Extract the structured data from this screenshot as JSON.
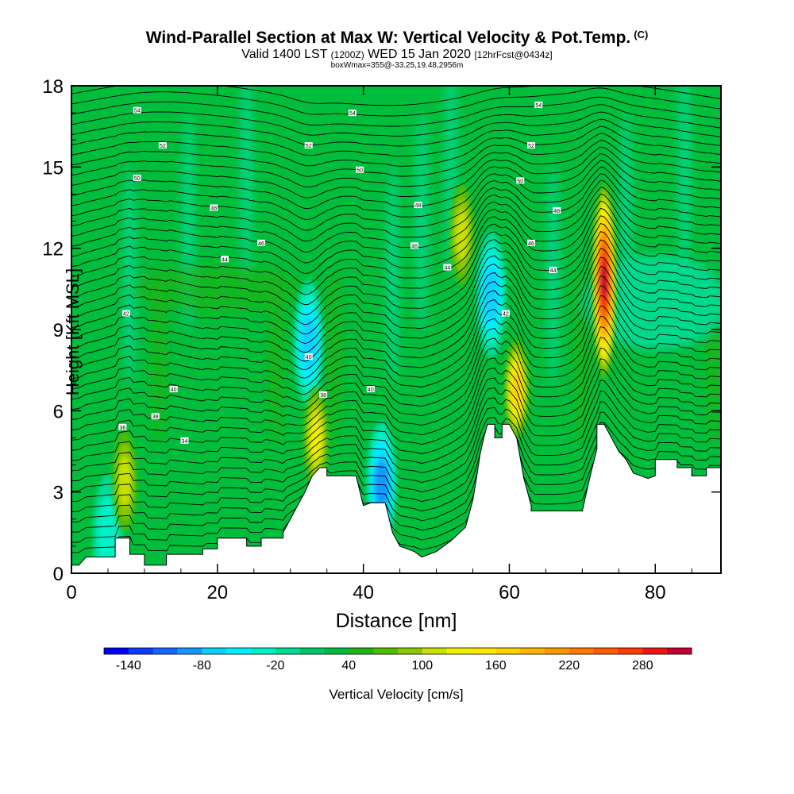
{
  "header": {
    "title": "Wind-Parallel Section at Max W: Vertical Velocity & Pot.Temp.",
    "copyright": "(C)",
    "valid_prefix": "Valid 1400 LST",
    "valid_z": "(1200Z)",
    "valid_date": "WED 15 Jan 2020",
    "valid_fcst": "[12hrFcst@0434z]",
    "box_info": "boxWmax=355@-33.25,19.48,2956m"
  },
  "chart_data": {
    "type": "heatmap",
    "title": "Wind-Parallel Section at Max W: Vertical Velocity & Pot.Temp.",
    "xlabel": "Distance [nm]",
    "ylabel": "Height [Kft MSL]",
    "xlim": [
      0,
      89
    ],
    "ylim": [
      0,
      18
    ],
    "xticks": [
      0,
      20,
      40,
      60,
      80
    ],
    "yticks": [
      0,
      3,
      6,
      9,
      12,
      15,
      18
    ],
    "colorbar": {
      "label": "Vertical Velocity [cm/s]",
      "tick_labels": [
        -140,
        -80,
        -20,
        40,
        100,
        160,
        220,
        280
      ],
      "min": -160,
      "max": 320,
      "step": 20,
      "colors": [
        "#0000ff",
        "#0a3cff",
        "#1464ff",
        "#1496ff",
        "#0ad2ff",
        "#00f0ff",
        "#00f0c8",
        "#00dc96",
        "#00c864",
        "#00be3c",
        "#1eb414",
        "#50be00",
        "#8cc800",
        "#c8e100",
        "#f0f000",
        "#fae600",
        "#ffd200",
        "#ffb400",
        "#ff9600",
        "#ff7800",
        "#ff5a00",
        "#ff3c00",
        "#f01414",
        "#c80032"
      ]
    },
    "terrain": [
      [
        0,
        0.3
      ],
      [
        1,
        0.3
      ],
      [
        2,
        0.6
      ],
      [
        6,
        0.6
      ],
      [
        6,
        1.3
      ],
      [
        8,
        1.3
      ],
      [
        8,
        0.7
      ],
      [
        10,
        0.7
      ],
      [
        10,
        0.3
      ],
      [
        13,
        0.3
      ],
      [
        13,
        0.7
      ],
      [
        18,
        0.7
      ],
      [
        18,
        0.9
      ],
      [
        20,
        0.9
      ],
      [
        20,
        1.3
      ],
      [
        24,
        1.3
      ],
      [
        24,
        1.0
      ],
      [
        26,
        1.0
      ],
      [
        26,
        1.3
      ],
      [
        29,
        1.3
      ],
      [
        29,
        1.5
      ],
      [
        30,
        2.0
      ],
      [
        31,
        2.5
      ],
      [
        32,
        3.0
      ],
      [
        33,
        3.6
      ],
      [
        34,
        3.9
      ],
      [
        35,
        3.9
      ],
      [
        35,
        3.6
      ],
      [
        39,
        3.6
      ],
      [
        40,
        2.5
      ],
      [
        41,
        2.6
      ],
      [
        43,
        2.6
      ],
      [
        44,
        1.5
      ],
      [
        45,
        1.0
      ],
      [
        47,
        0.8
      ],
      [
        48,
        0.6
      ],
      [
        50,
        0.8
      ],
      [
        52,
        1.2
      ],
      [
        54,
        1.7
      ],
      [
        55,
        2.7
      ],
      [
        55.5,
        3.5
      ],
      [
        56,
        4.4
      ],
      [
        56.5,
        5.0
      ],
      [
        57,
        5.5
      ],
      [
        58,
        5.5
      ],
      [
        58,
        5.0
      ],
      [
        59,
        5.0
      ],
      [
        59,
        5.5
      ],
      [
        60,
        5.5
      ],
      [
        61,
        5.0
      ],
      [
        62,
        3.5
      ],
      [
        63,
        2.5
      ],
      [
        63,
        2.3
      ],
      [
        70,
        2.3
      ],
      [
        71,
        3.5
      ],
      [
        72,
        4.6
      ],
      [
        72,
        5.5
      ],
      [
        73,
        5.5
      ],
      [
        74,
        5.0
      ],
      [
        75,
        4.5
      ],
      [
        76,
        4.2
      ],
      [
        77,
        3.7
      ],
      [
        78,
        3.6
      ],
      [
        79,
        3.5
      ],
      [
        80,
        3.6
      ],
      [
        80,
        4.2
      ],
      [
        83,
        4.2
      ],
      [
        83,
        3.9
      ],
      [
        85,
        3.9
      ],
      [
        85,
        3.6
      ],
      [
        87,
        3.6
      ],
      [
        87,
        3.9
      ],
      [
        89,
        3.9
      ]
    ],
    "updrafts": [
      {
        "x": 7.3,
        "y": 3.4,
        "w_max": 110
      },
      {
        "x": 33.5,
        "y": 5.0,
        "w_max": 130
      },
      {
        "x": 53.5,
        "y": 12.5,
        "w_max": 100
      },
      {
        "x": 61,
        "y": 6.8,
        "w_max": 170
      },
      {
        "x": 73,
        "y": 10.8,
        "w_max": 300
      }
    ],
    "downdrafts": [
      {
        "x": 32.5,
        "y": 8.5,
        "w_min": -80
      },
      {
        "x": 42.5,
        "y": 3.3,
        "w_min": -100
      },
      {
        "x": 57.5,
        "y": 10.3,
        "w_min": -80
      },
      {
        "x": 5,
        "y": 1.3,
        "w_min": -40
      }
    ],
    "isentrope_labels": [
      {
        "x": 9,
        "y": 17.1,
        "text": "54"
      },
      {
        "x": 38.5,
        "y": 17.0,
        "text": "54"
      },
      {
        "x": 64,
        "y": 17.3,
        "text": "54"
      },
      {
        "x": 12.5,
        "y": 15.8,
        "text": "52"
      },
      {
        "x": 32.5,
        "y": 15.8,
        "text": "52"
      },
      {
        "x": 63,
        "y": 15.8,
        "text": "52"
      },
      {
        "x": 9,
        "y": 14.6,
        "text": "50"
      },
      {
        "x": 39.5,
        "y": 14.9,
        "text": "50"
      },
      {
        "x": 61.5,
        "y": 14.5,
        "text": "50"
      },
      {
        "x": 19.5,
        "y": 13.5,
        "text": "48"
      },
      {
        "x": 47.5,
        "y": 13.6,
        "text": "48"
      },
      {
        "x": 66.5,
        "y": 13.4,
        "text": "48"
      },
      {
        "x": 26,
        "y": 12.2,
        "text": "46"
      },
      {
        "x": 47,
        "y": 12.1,
        "text": "46"
      },
      {
        "x": 63,
        "y": 12.2,
        "text": "46"
      },
      {
        "x": 21,
        "y": 11.6,
        "text": "44"
      },
      {
        "x": 51.5,
        "y": 11.3,
        "text": "44"
      },
      {
        "x": 66,
        "y": 11.2,
        "text": "44"
      },
      {
        "x": 7.5,
        "y": 9.6,
        "text": "42"
      },
      {
        "x": 59.5,
        "y": 9.6,
        "text": "42"
      },
      {
        "x": 32.5,
        "y": 8.0,
        "text": "40"
      },
      {
        "x": 14,
        "y": 6.8,
        "text": "40"
      },
      {
        "x": 41,
        "y": 6.8,
        "text": "40"
      },
      {
        "x": 34.5,
        "y": 6.6,
        "text": "38"
      },
      {
        "x": 11.5,
        "y": 5.8,
        "text": "38"
      },
      {
        "x": 7,
        "y": 5.4,
        "text": "36"
      },
      {
        "x": 15.5,
        "y": 4.9,
        "text": "34"
      }
    ]
  }
}
